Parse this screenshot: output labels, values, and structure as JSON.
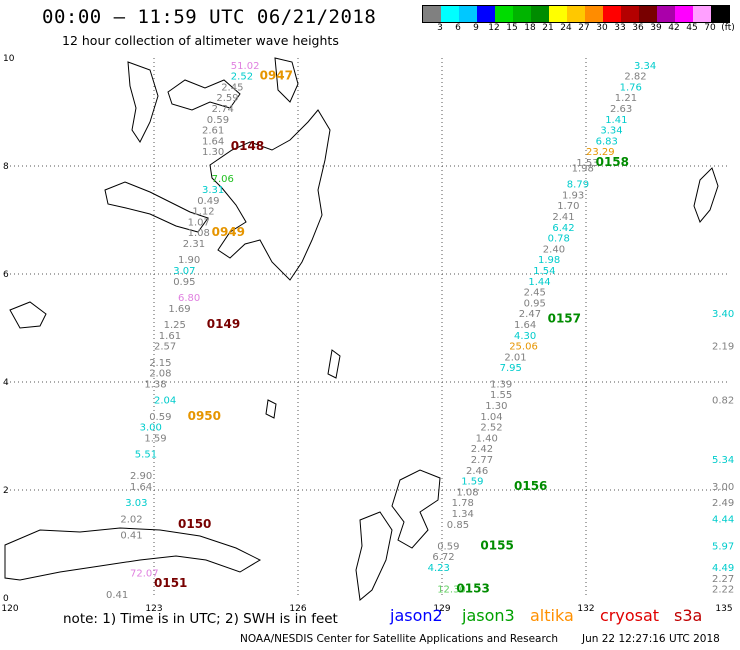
{
  "header": {
    "title": "00:00 – 11:59 UTC 06/21/2018",
    "subtitle": "12 hour collection of altimeter wave heights"
  },
  "colorbar": {
    "colors": [
      "#808080",
      "#00ffff",
      "#00c8ff",
      "#0000ff",
      "#00dc00",
      "#00b400",
      "#008c00",
      "#ffff00",
      "#ffc800",
      "#ff8c00",
      "#ff0000",
      "#b40000",
      "#780000",
      "#aa00aa",
      "#ff00ff",
      "#ffa0ff",
      "#000000"
    ],
    "labels": [
      "3",
      "6",
      "9",
      "12",
      "15",
      "18",
      "21",
      "24",
      "27",
      "30",
      "33",
      "36",
      "39",
      "42",
      "45",
      "70",
      "(ft)"
    ]
  },
  "axes": {
    "x_ticks": [
      "120",
      "123",
      "126",
      "129",
      "132",
      "135"
    ],
    "y_ticks": [
      "10",
      "8",
      "6",
      "4",
      "2",
      "0"
    ]
  },
  "passes": [
    {
      "time": "0947",
      "color": "#e69500",
      "lon": 125.2,
      "lat": 9.6
    },
    {
      "time": "0148",
      "color": "#780000",
      "lon": 124.6,
      "lat": 8.3
    },
    {
      "time": "0949",
      "color": "#e69500",
      "lon": 124.2,
      "lat": 6.7
    },
    {
      "time": "0149",
      "color": "#780000",
      "lon": 124.1,
      "lat": 5.0
    },
    {
      "time": "0950",
      "color": "#e69500",
      "lon": 123.7,
      "lat": 3.3
    },
    {
      "time": "0150",
      "color": "#780000",
      "lon": 123.5,
      "lat": 1.3
    },
    {
      "time": "0151",
      "color": "#780000",
      "lon": 123.0,
      "lat": 0.2
    },
    {
      "time": "0158",
      "color": "#008c00",
      "lon": 132.2,
      "lat": 8.0
    },
    {
      "time": "0157",
      "color": "#008c00",
      "lon": 131.2,
      "lat": 5.1
    },
    {
      "time": "0156",
      "color": "#008c00",
      "lon": 130.5,
      "lat": 2.0
    },
    {
      "time": "0155",
      "color": "#008c00",
      "lon": 129.8,
      "lat": 0.9
    },
    {
      "time": "0153",
      "color": "#008c00",
      "lon": 129.3,
      "lat": 0.1
    }
  ],
  "track_values": [
    {
      "v": "51.02",
      "c": "#e080e0",
      "lon": 124.6,
      "lat": 9.8
    },
    {
      "v": "2.52",
      "c": "#00cccc",
      "lon": 124.6,
      "lat": 9.6
    },
    {
      "v": "2.45",
      "c": "#808080",
      "lon": 124.4,
      "lat": 9.4
    },
    {
      "v": "2.59",
      "c": "#808080",
      "lon": 124.3,
      "lat": 9.2
    },
    {
      "v": "2.74",
      "c": "#808080",
      "lon": 124.2,
      "lat": 9.0
    },
    {
      "v": "0.59",
      "c": "#808080",
      "lon": 124.1,
      "lat": 8.8
    },
    {
      "v": "2.61",
      "c": "#808080",
      "lon": 124.0,
      "lat": 8.6
    },
    {
      "v": "1.64",
      "c": "#808080",
      "lon": 124.0,
      "lat": 8.4
    },
    {
      "v": "1.30",
      "c": "#808080",
      "lon": 124.0,
      "lat": 8.2
    },
    {
      "v": "7.06",
      "c": "#20c020",
      "lon": 124.2,
      "lat": 7.7
    },
    {
      "v": "3.31",
      "c": "#00cccc",
      "lon": 124.0,
      "lat": 7.5
    },
    {
      "v": "0.49",
      "c": "#808080",
      "lon": 123.9,
      "lat": 7.3
    },
    {
      "v": "1.12",
      "c": "#808080",
      "lon": 123.8,
      "lat": 7.1
    },
    {
      "v": "1.07",
      "c": "#808080",
      "lon": 123.7,
      "lat": 6.9
    },
    {
      "v": "1.08",
      "c": "#808080",
      "lon": 123.7,
      "lat": 6.7
    },
    {
      "v": "2.31",
      "c": "#808080",
      "lon": 123.6,
      "lat": 6.5
    },
    {
      "v": "1.90",
      "c": "#808080",
      "lon": 123.5,
      "lat": 6.2
    },
    {
      "v": "3.07",
      "c": "#00cccc",
      "lon": 123.4,
      "lat": 6.0
    },
    {
      "v": "0.95",
      "c": "#808080",
      "lon": 123.4,
      "lat": 5.8
    },
    {
      "v": "6.80",
      "c": "#e080e0",
      "lon": 123.5,
      "lat": 5.5
    },
    {
      "v": "1.69",
      "c": "#808080",
      "lon": 123.3,
      "lat": 5.3
    },
    {
      "v": "1.25",
      "c": "#808080",
      "lon": 123.2,
      "lat": 5.0
    },
    {
      "v": "1.61",
      "c": "#808080",
      "lon": 123.1,
      "lat": 4.8
    },
    {
      "v": "2.57",
      "c": "#808080",
      "lon": 123.0,
      "lat": 4.6
    },
    {
      "v": "2.15",
      "c": "#808080",
      "lon": 122.9,
      "lat": 4.3
    },
    {
      "v": "2.08",
      "c": "#808080",
      "lon": 122.9,
      "lat": 4.1
    },
    {
      "v": "1.38",
      "c": "#808080",
      "lon": 122.8,
      "lat": 3.9
    },
    {
      "v": "2.04",
      "c": "#00cccc",
      "lon": 123.0,
      "lat": 3.6
    },
    {
      "v": "0.59",
      "c": "#808080",
      "lon": 122.9,
      "lat": 3.3
    },
    {
      "v": "3.00",
      "c": "#00cccc",
      "lon": 122.7,
      "lat": 3.1
    },
    {
      "v": "1.59",
      "c": "#808080",
      "lon": 122.8,
      "lat": 2.9
    },
    {
      "v": "5.51",
      "c": "#00cccc",
      "lon": 122.6,
      "lat": 2.6
    },
    {
      "v": "2.90",
      "c": "#808080",
      "lon": 122.5,
      "lat": 2.2
    },
    {
      "v": "1.64",
      "c": "#808080",
      "lon": 122.5,
      "lat": 2.0
    },
    {
      "v": "3.03",
      "c": "#00cccc",
      "lon": 122.4,
      "lat": 1.7
    },
    {
      "v": "2.02",
      "c": "#808080",
      "lon": 122.3,
      "lat": 1.4
    },
    {
      "v": "0.41",
      "c": "#808080",
      "lon": 122.3,
      "lat": 1.1
    },
    {
      "v": "72.07",
      "c": "#e080e0",
      "lon": 122.5,
      "lat": 0.4
    },
    {
      "v": "0.41",
      "c": "#808080",
      "lon": 122.0,
      "lat": 0.0
    },
    {
      "v": "3.34",
      "c": "#00cccc",
      "lon": 133.0,
      "lat": 9.8
    },
    {
      "v": "2.82",
      "c": "#808080",
      "lon": 132.8,
      "lat": 9.6
    },
    {
      "v": "1.76",
      "c": "#00cccc",
      "lon": 132.7,
      "lat": 9.4
    },
    {
      "v": "1.21",
      "c": "#808080",
      "lon": 132.6,
      "lat": 9.2
    },
    {
      "v": "2.63",
      "c": "#808080",
      "lon": 132.5,
      "lat": 9.0
    },
    {
      "v": "1.41",
      "c": "#00cccc",
      "lon": 132.4,
      "lat": 8.8
    },
    {
      "v": "3.34",
      "c": "#00cccc",
      "lon": 132.3,
      "lat": 8.6
    },
    {
      "v": "6.83",
      "c": "#00cccc",
      "lon": 132.2,
      "lat": 8.4
    },
    {
      "v": "23.29",
      "c": "#e69500",
      "lon": 132.0,
      "lat": 8.2
    },
    {
      "v": "1.53",
      "c": "#808080",
      "lon": 131.8,
      "lat": 8.0
    },
    {
      "v": "1.98",
      "c": "#808080",
      "lon": 131.7,
      "lat": 7.9
    },
    {
      "v": "8.79",
      "c": "#00cccc",
      "lon": 131.6,
      "lat": 7.6
    },
    {
      "v": "1.93",
      "c": "#808080",
      "lon": 131.5,
      "lat": 7.4
    },
    {
      "v": "1.70",
      "c": "#808080",
      "lon": 131.4,
      "lat": 7.2
    },
    {
      "v": "2.41",
      "c": "#808080",
      "lon": 131.3,
      "lat": 7.0
    },
    {
      "v": "6.42",
      "c": "#00cccc",
      "lon": 131.3,
      "lat": 6.8
    },
    {
      "v": "0.78",
      "c": "#00cccc",
      "lon": 131.2,
      "lat": 6.6
    },
    {
      "v": "2.40",
      "c": "#808080",
      "lon": 131.1,
      "lat": 6.4
    },
    {
      "v": "1.98",
      "c": "#00cccc",
      "lon": 131.0,
      "lat": 6.2
    },
    {
      "v": "1.54",
      "c": "#00cccc",
      "lon": 130.9,
      "lat": 6.0
    },
    {
      "v": "1.44",
      "c": "#00cccc",
      "lon": 130.8,
      "lat": 5.8
    },
    {
      "v": "2.45",
      "c": "#808080",
      "lon": 130.7,
      "lat": 5.6
    },
    {
      "v": "0.95",
      "c": "#808080",
      "lon": 130.7,
      "lat": 5.4
    },
    {
      "v": "2.47",
      "c": "#808080",
      "lon": 130.6,
      "lat": 5.2
    },
    {
      "v": "1.64",
      "c": "#808080",
      "lon": 130.5,
      "lat": 5.0
    },
    {
      "v": "4.30",
      "c": "#00cccc",
      "lon": 130.5,
      "lat": 4.8
    },
    {
      "v": "25.06",
      "c": "#e69500",
      "lon": 130.4,
      "lat": 4.6
    },
    {
      "v": "2.01",
      "c": "#808080",
      "lon": 130.3,
      "lat": 4.4
    },
    {
      "v": "7.95",
      "c": "#00cccc",
      "lon": 130.2,
      "lat": 4.2
    },
    {
      "v": "1.39",
      "c": "#808080",
      "lon": 130.0,
      "lat": 3.9
    },
    {
      "v": "1.55",
      "c": "#808080",
      "lon": 130.0,
      "lat": 3.7
    },
    {
      "v": "1.30",
      "c": "#808080",
      "lon": 129.9,
      "lat": 3.5
    },
    {
      "v": "1.04",
      "c": "#808080",
      "lon": 129.8,
      "lat": 3.3
    },
    {
      "v": "2.52",
      "c": "#808080",
      "lon": 129.8,
      "lat": 3.1
    },
    {
      "v": "1.40",
      "c": "#808080",
      "lon": 129.7,
      "lat": 2.9
    },
    {
      "v": "2.42",
      "c": "#808080",
      "lon": 129.6,
      "lat": 2.7
    },
    {
      "v": "2.77",
      "c": "#808080",
      "lon": 129.6,
      "lat": 2.5
    },
    {
      "v": "2.46",
      "c": "#808080",
      "lon": 129.5,
      "lat": 2.3
    },
    {
      "v": "1.59",
      "c": "#00cccc",
      "lon": 129.4,
      "lat": 2.1
    },
    {
      "v": "1.08",
      "c": "#808080",
      "lon": 129.3,
      "lat": 1.9
    },
    {
      "v": "1.78",
      "c": "#808080",
      "lon": 129.2,
      "lat": 1.7
    },
    {
      "v": "1.34",
      "c": "#808080",
      "lon": 129.2,
      "lat": 1.5
    },
    {
      "v": "0.85",
      "c": "#808080",
      "lon": 129.1,
      "lat": 1.3
    },
    {
      "v": "0.59",
      "c": "#808080",
      "lon": 128.9,
      "lat": 0.9
    },
    {
      "v": "6.72",
      "c": "#808080",
      "lon": 128.8,
      "lat": 0.7
    },
    {
      "v": "4.23",
      "c": "#00cccc",
      "lon": 128.7,
      "lat": 0.5
    },
    {
      "v": "12.30",
      "c": "#60d060",
      "lon": 128.9,
      "lat": 0.1
    },
    {
      "v": "3.40",
      "c": "#00cccc",
      "lon": 135.0,
      "lat": 5.2
    },
    {
      "v": "2.19",
      "c": "#808080",
      "lon": 134.9,
      "lat": 4.6
    },
    {
      "v": "0.82",
      "c": "#808080",
      "lon": 134.9,
      "lat": 3.6
    },
    {
      "v": "5.34",
      "c": "#00cccc",
      "lon": 134.9,
      "lat": 2.5
    },
    {
      "v": "3.00",
      "c": "#808080",
      "lon": 134.8,
      "lat": 2.0
    },
    {
      "v": "2.49",
      "c": "#808080",
      "lon": 134.8,
      "lat": 1.7
    },
    {
      "v": "4.44",
      "c": "#00cccc",
      "lon": 134.8,
      "lat": 1.4
    },
    {
      "v": "5.97",
      "c": "#00cccc",
      "lon": 134.8,
      "lat": 0.9
    },
    {
      "v": "4.49",
      "c": "#00cccc",
      "lon": 134.8,
      "lat": 0.5
    },
    {
      "v": "2.27",
      "c": "#808080",
      "lon": 134.8,
      "lat": 0.3
    },
    {
      "v": "2.22",
      "c": "#808080",
      "lon": 134.7,
      "lat": 0.1
    }
  ],
  "footer": {
    "note": "note: 1) Time is in UTC; 2) SWH is in feet",
    "legend": [
      {
        "label": "jason2",
        "color": "#0000ff"
      },
      {
        "label": "jason3",
        "color": "#00a000"
      },
      {
        "label": "altika",
        "color": "#ff9000"
      },
      {
        "label": "cryosat",
        "color": "#e00000"
      },
      {
        "label": "s3a",
        "color": "#c00000"
      }
    ],
    "credit": "NOAA/NESDIS Center for Satellite Applications and Research",
    "timestamp": "Jun 22 12:27:16 UTC 2018"
  }
}
